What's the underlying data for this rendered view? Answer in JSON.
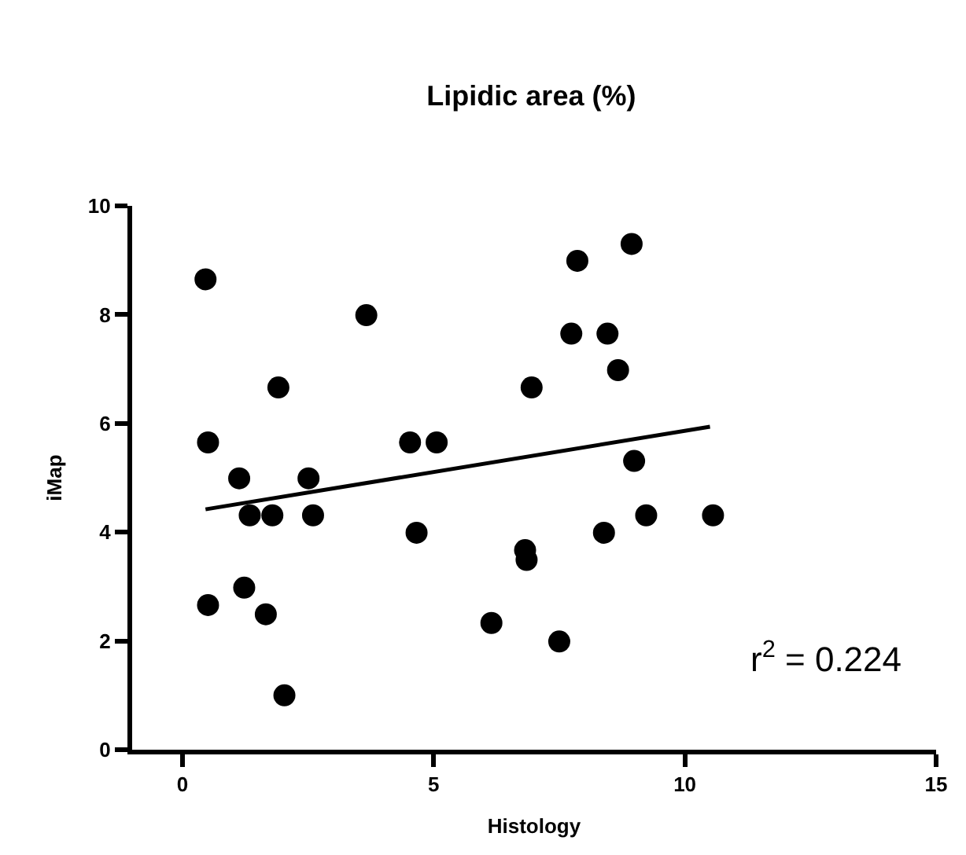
{
  "chart_data": {
    "type": "scatter",
    "title": "Lipidic area (%)",
    "xlabel": "Histology",
    "ylabel": "iMap",
    "xlim": [
      -1,
      15
    ],
    "xticks": [
      0,
      5,
      10,
      15
    ],
    "ylim": [
      0,
      10
    ],
    "yticks": [
      0,
      2,
      4,
      6,
      8,
      10
    ],
    "series": [
      {
        "color": "#000000",
        "marker": "circle",
        "x": [
          0.46,
          0.51,
          0.51,
          1.13,
          1.34,
          1.23,
          1.66,
          1.79,
          1.91,
          2.03,
          2.51,
          2.6,
          3.66,
          4.53,
          4.66,
          5.06,
          6.15,
          6.82,
          6.85,
          6.95,
          7.5,
          7.74,
          7.86,
          8.39,
          8.46,
          8.67,
          8.94,
          8.99,
          9.23,
          10.56
        ],
        "values": [
          8.65,
          5.65,
          2.66,
          4.99,
          4.31,
          2.98,
          2.49,
          4.31,
          6.66,
          1.0,
          4.99,
          4.31,
          7.99,
          5.65,
          3.99,
          5.65,
          2.33,
          3.67,
          3.49,
          6.66,
          1.99,
          7.65,
          8.99,
          3.99,
          7.65,
          6.98,
          9.3,
          5.31,
          4.31,
          4.31
        ]
      },
      {
        "type": "line",
        "color": "#000000",
        "x": [
          0.46,
          10.5
        ],
        "values": [
          4.42,
          5.94
        ],
        "line_style": "solid"
      }
    ],
    "annotations": [
      "r$^{2}$ = 0.224"
    ]
  }
}
